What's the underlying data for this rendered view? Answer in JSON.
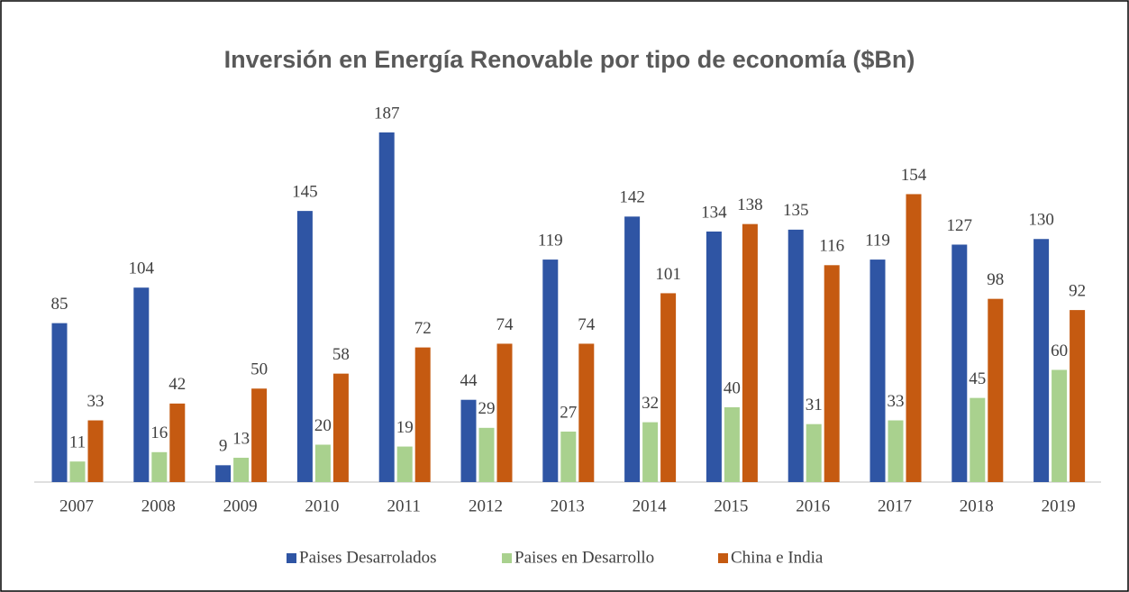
{
  "chart_data": {
    "type": "bar",
    "title": "Inversión en Energía Renovable por tipo de economía ($Bn)",
    "categories": [
      "2007",
      "2008",
      "2009",
      "2010",
      "2011",
      "2012",
      "2013",
      "2014",
      "2015",
      "2016",
      "2017",
      "2018",
      "2019"
    ],
    "series": [
      {
        "name": "Paises Desarrolados",
        "color": "#2f55a4",
        "values": [
          85,
          104,
          9,
          145,
          187,
          44,
          119,
          142,
          134,
          135,
          119,
          127,
          130
        ]
      },
      {
        "name": "Paises en Desarrollo",
        "color": "#a9d18e",
        "values": [
          11,
          16,
          13,
          20,
          19,
          29,
          27,
          32,
          40,
          31,
          33,
          45,
          60
        ]
      },
      {
        "name": "China e India",
        "color": "#c55a11",
        "values": [
          33,
          42,
          50,
          58,
          72,
          74,
          74,
          101,
          138,
          116,
          154,
          98,
          92
        ]
      }
    ],
    "ylim": [
      0,
      200
    ],
    "legend": "bottom"
  }
}
